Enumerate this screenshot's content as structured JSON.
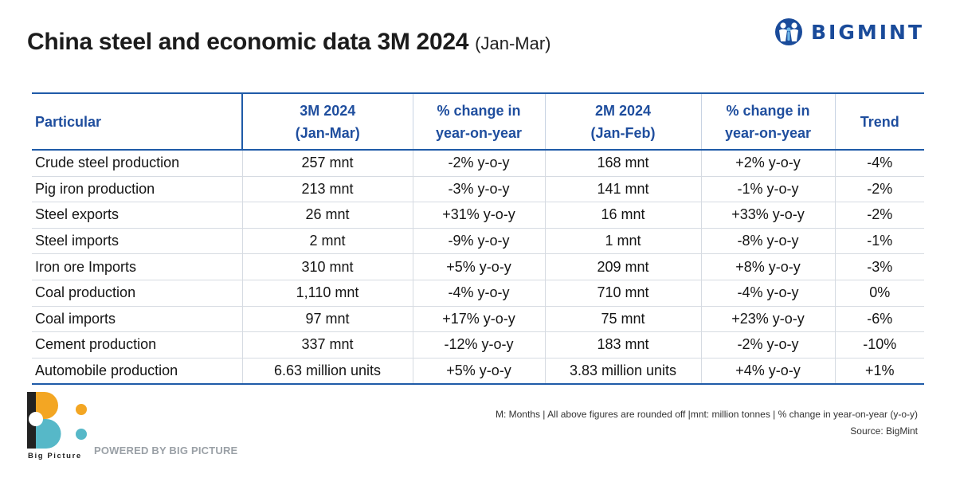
{
  "header": {
    "title": "China steel and economic data 3M 2024",
    "subtitle": "(Jan-Mar)"
  },
  "brand": {
    "name": "BIGMINT",
    "icon": "people-logo-icon",
    "color": "#1a4b9a"
  },
  "table": {
    "columns": [
      {
        "lines": [
          "Particular"
        ]
      },
      {
        "lines": [
          "3M 2024",
          "(Jan-Mar)"
        ]
      },
      {
        "lines": [
          "% change in",
          "year-on-year"
        ]
      },
      {
        "lines": [
          "2M 2024",
          "(Jan-Feb)"
        ]
      },
      {
        "lines": [
          "% change in",
          "year-on-year"
        ]
      },
      {
        "lines": [
          "Trend"
        ]
      }
    ],
    "rows": [
      {
        "particular": "Crude steel production",
        "m3": "257 mnt",
        "m3_change": "-2% y-o-y",
        "m2": "168 mnt",
        "m2_change": "+2% y-o-y",
        "trend": "-4%"
      },
      {
        "particular": "Pig iron production",
        "m3": "213 mnt",
        "m3_change": "-3% y-o-y",
        "m2": "141 mnt",
        "m2_change": "-1% y-o-y",
        "trend": "-2%"
      },
      {
        "particular": "Steel exports",
        "m3": "26 mnt",
        "m3_change": "+31% y-o-y",
        "m2": "16 mnt",
        "m2_change": "+33% y-o-y",
        "trend": "-2%"
      },
      {
        "particular": "Steel imports",
        "m3": "2 mnt",
        "m3_change": "-9% y-o-y",
        "m2": "1 mnt",
        "m2_change": "-8% y-o-y",
        "trend": "-1%"
      },
      {
        "particular": "Iron ore Imports",
        "m3": "310 mnt",
        "m3_change": "+5% y-o-y",
        "m2": "209 mnt",
        "m2_change": "+8% y-o-y",
        "trend": "-3%"
      },
      {
        "particular": "Coal production",
        "m3": "1,110 mnt",
        "m3_change": "-4% y-o-y",
        "m2": "710 mnt",
        "m2_change": "-4% y-o-y",
        "trend": "0%"
      },
      {
        "particular": "Coal imports",
        "m3": "97 mnt",
        "m3_change": "+17% y-o-y",
        "m2": "75 mnt",
        "m2_change": "+23% y-o-y",
        "trend": "-6%"
      },
      {
        "particular": "Cement production",
        "m3": "337 mnt",
        "m3_change": "-12% y-o-y",
        "m2": "183 mnt",
        "m2_change": "-2% y-o-y",
        "trend": "-10%"
      },
      {
        "particular": "Automobile production",
        "m3": "6.63 million units",
        "m3_change": "+5% y-o-y",
        "m2": "3.83 million units",
        "m2_change": "+4% y-o-y",
        "trend": "+1%"
      }
    ]
  },
  "colors": {
    "header_text": "#1f4e9e",
    "positive": "#19a143",
    "negative": "#d42020",
    "rule": "#1f5ba8"
  },
  "footer": {
    "note": "M: Months | All above figures are rounded off |mnt: million tonnes | % change in year-on-year (y-o-y)",
    "source": "Source: BigMint",
    "powered_by": "POWERED BY BIG PICTURE",
    "logo_label": "Big Picture",
    "logo_icon": "big-picture-logo-icon"
  }
}
